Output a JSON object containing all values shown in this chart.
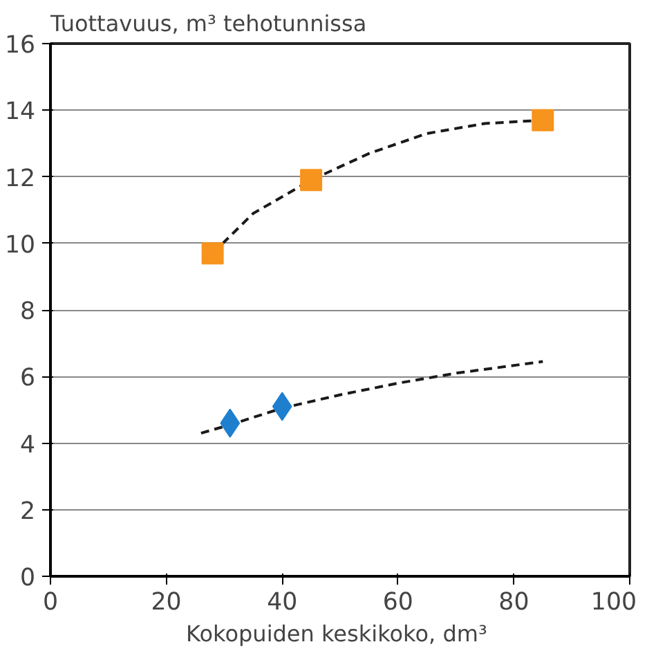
{
  "chart_data": {
    "type": "scatter",
    "ylabel": "Tuottavuus, m³ tehotunnissa",
    "xlabel": "Kokopuiden keskikoko,  dm³",
    "xlim": [
      0,
      100
    ],
    "xticks": [
      0,
      20,
      40,
      60,
      80,
      100
    ],
    "ylim": [
      0,
      16
    ],
    "yticks": [
      0,
      2,
      4,
      6,
      8,
      10,
      12,
      14,
      16
    ],
    "grid": "y",
    "series": [
      {
        "type": "line",
        "color": "#1a1a1a",
        "line_style": "dashed",
        "marker": "none",
        "x": [
          28,
          35,
          45,
          55,
          65,
          75,
          85
        ],
        "values": [
          9.7,
          10.9,
          11.9,
          12.7,
          13.3,
          13.6,
          13.7
        ]
      },
      {
        "type": "line",
        "color": "#1a1a1a",
        "line_style": "dashed",
        "marker": "none",
        "x": [
          26,
          31,
          40,
          50,
          60,
          70,
          85
        ],
        "values": [
          4.3,
          4.55,
          5.05,
          5.45,
          5.8,
          6.1,
          6.45
        ]
      },
      {
        "color": "#f7941d",
        "marker": "square",
        "x": [
          28,
          45,
          85
        ],
        "values": [
          9.7,
          11.9,
          13.7
        ]
      },
      {
        "color": "#1f7fcf",
        "marker": "diamond",
        "x": [
          31,
          40
        ],
        "values": [
          4.6,
          5.1
        ]
      }
    ]
  }
}
